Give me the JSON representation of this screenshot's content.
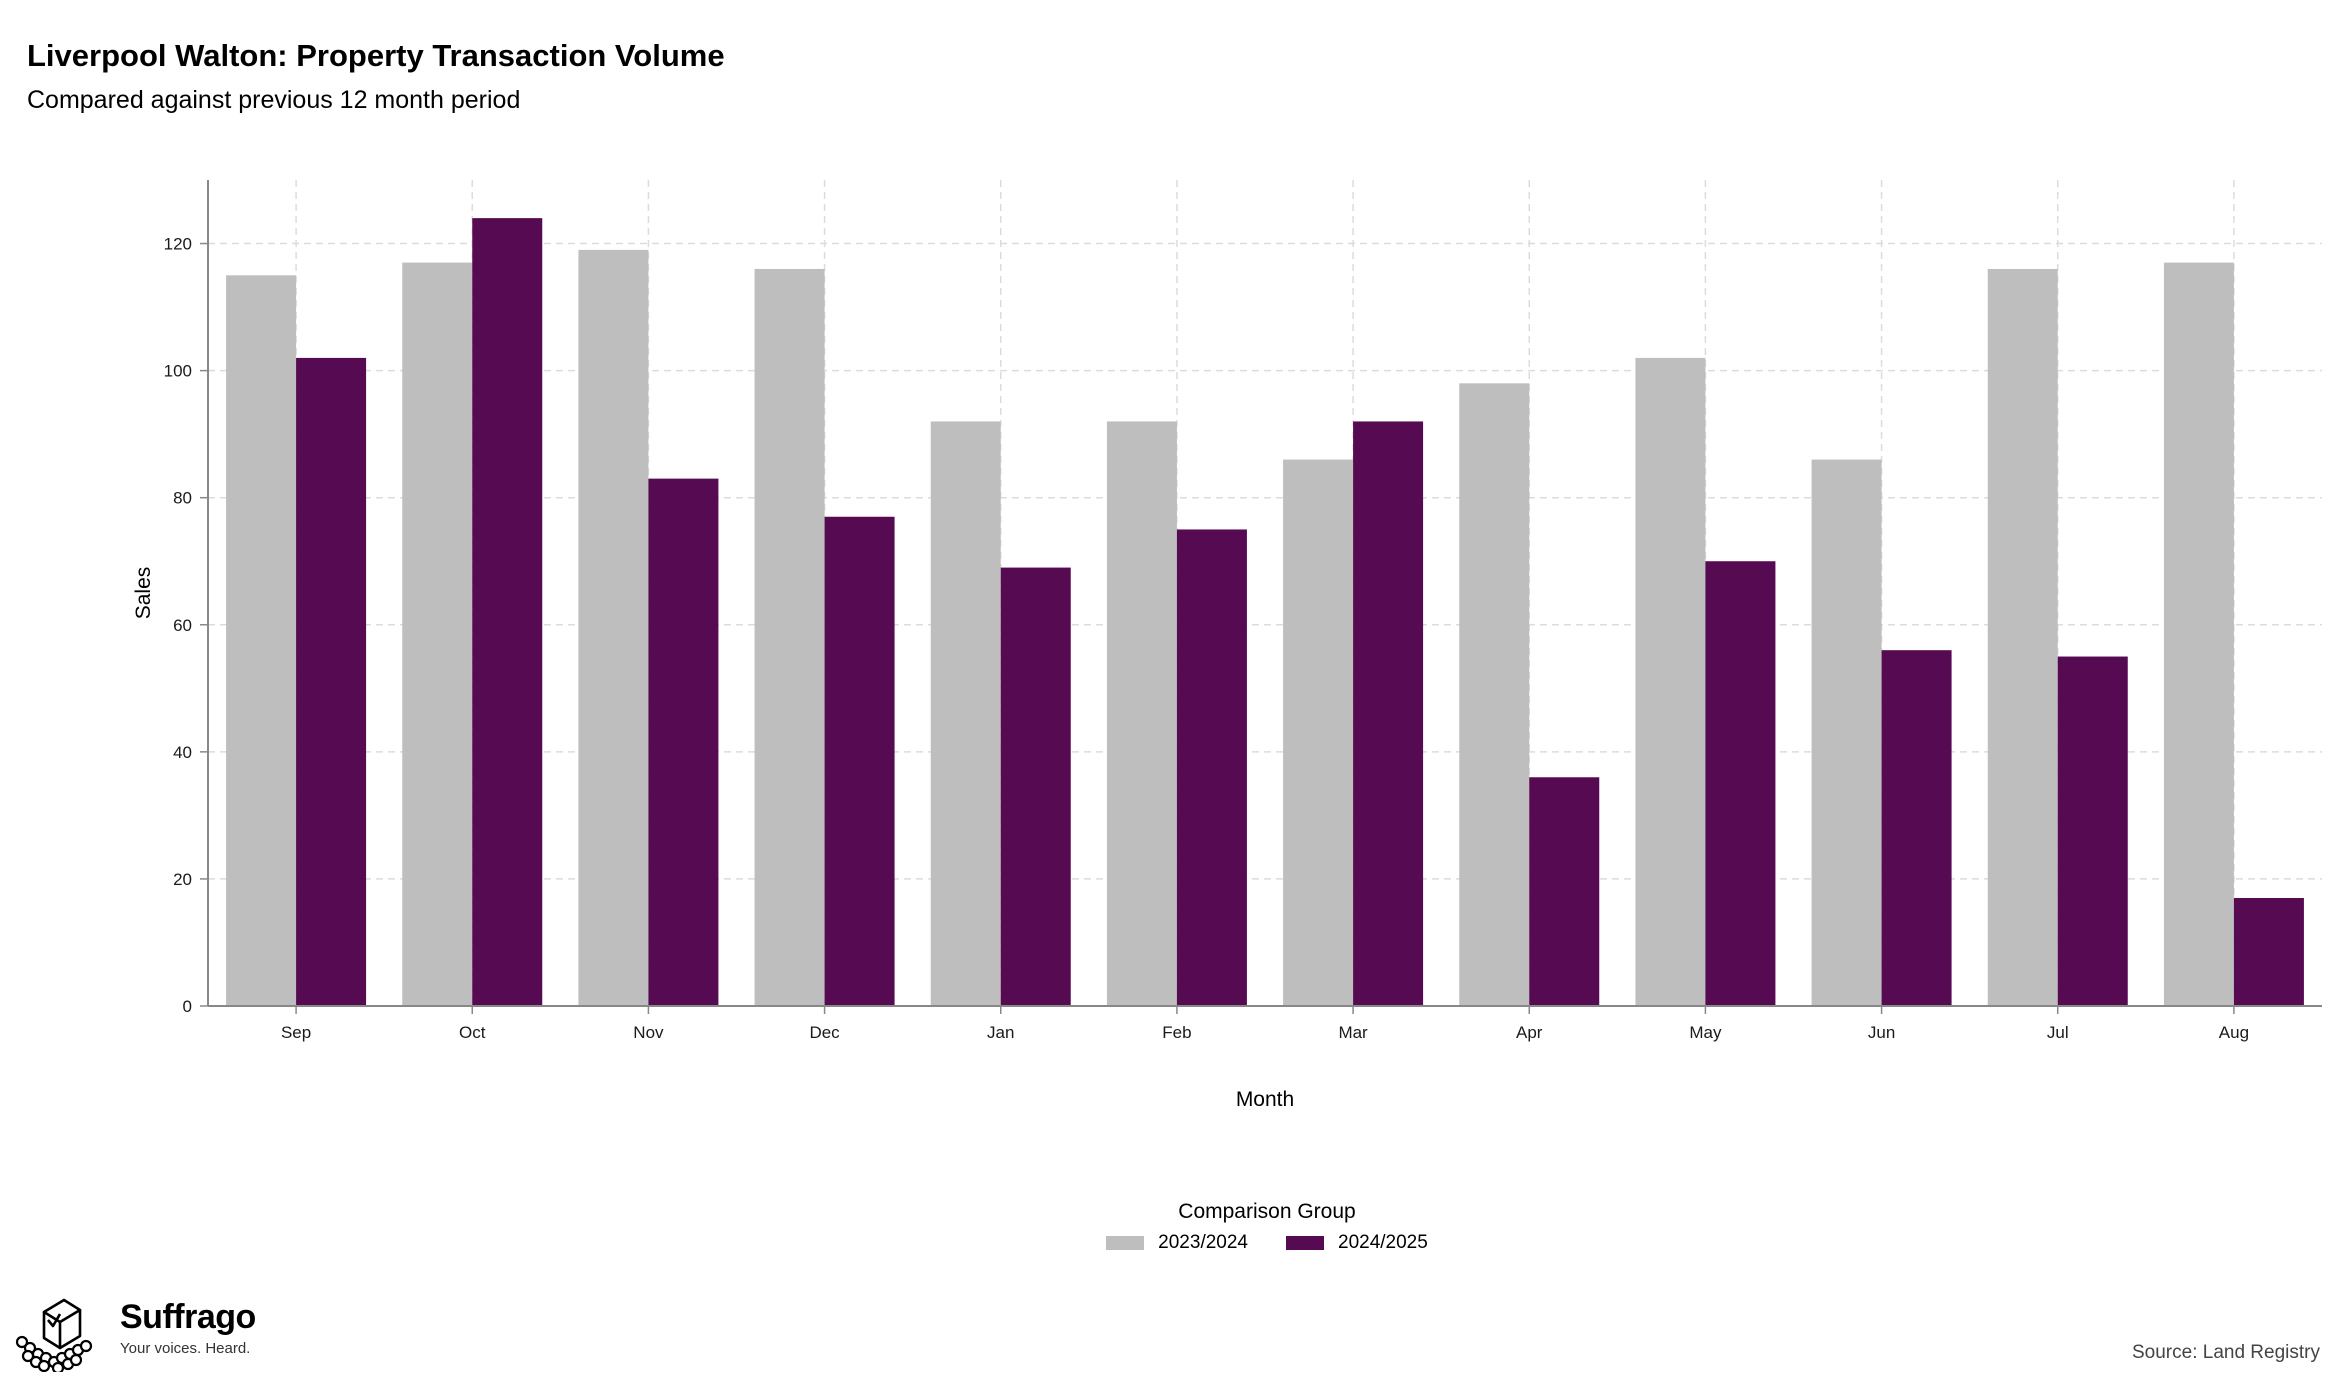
{
  "header": {
    "title": "Liverpool Walton: Property Transaction Volume",
    "subtitle": "Compared against previous 12 month period"
  },
  "chart_data": {
    "type": "bar",
    "title": "Liverpool Walton: Property Transaction Volume",
    "subtitle": "Compared against previous 12 month period",
    "xlabel": "Month",
    "ylabel": "Sales",
    "categories": [
      "Sep",
      "Oct",
      "Nov",
      "Dec",
      "Jan",
      "Feb",
      "Mar",
      "Apr",
      "May",
      "Jun",
      "Jul",
      "Aug"
    ],
    "series": [
      {
        "name": "2023/2024",
        "color": "#bebebe",
        "values": [
          115,
          117,
          119,
          116,
          92,
          92,
          86,
          98,
          102,
          86,
          116,
          117
        ]
      },
      {
        "name": "2024/2025",
        "color": "#560a52",
        "values": [
          102,
          124,
          83,
          77,
          69,
          75,
          92,
          36,
          70,
          56,
          55,
          17
        ]
      }
    ],
    "ylim": [
      0,
      130
    ],
    "yticks": [
      0,
      20,
      40,
      60,
      80,
      100,
      120
    ],
    "grid": true,
    "legend": {
      "title": "Comparison Group",
      "position": "bottom"
    }
  },
  "branding": {
    "name": "Suffrago",
    "tagline": "Your voices. Heard.",
    "logo_icon": "ballot-box-icon"
  },
  "footer": {
    "source": "Source: Land Registry"
  }
}
